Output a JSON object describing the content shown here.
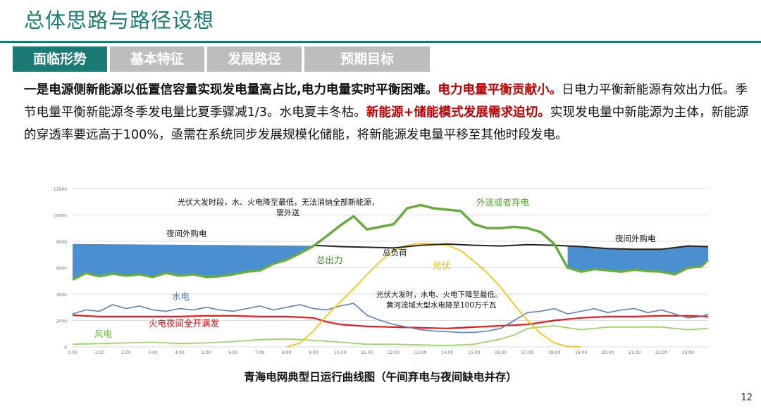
{
  "slide": {
    "title": "总体思路与路径设想",
    "tabs": [
      "面临形势",
      "基本特征",
      "发展路径",
      "预期目标"
    ],
    "active_tab": 0,
    "page_number": "12",
    "caption": "青海电网典型日运行曲线图（午间弃电与夜间缺电并存）",
    "paragraph": [
      {
        "text": "一是电源侧新能源以低置信容量实现发电量高占比,电力电量实时平衡困难。",
        "style": "bold"
      },
      {
        "text": "电力电量平衡贡献小。",
        "style": "red"
      },
      {
        "text": "日电力平衡新能源有效出力低。季节电量平衡新能源冬季发电量比夏季骤减1/3。水电夏丰冬枯。",
        "style": "normal"
      },
      {
        "text": "新能源+储能模式发展需求迫切。",
        "style": "red"
      },
      {
        "text": "实现发电量中新能源为主体，新能源的穿透率要远高于100%，亟需在系统同步发展规模化储能，将新能源发电量平移至其他时段发电。",
        "style": "normal"
      }
    ]
  },
  "chart_data": {
    "type": "line",
    "x_labels": [
      "0:00",
      "1:00",
      "2:00",
      "3:00",
      "4:00",
      "5:00",
      "6:00",
      "7:00",
      "8:00",
      "9:00",
      "10:00",
      "11:00",
      "12:00",
      "13:00",
      "14:00",
      "15:00",
      "16:00",
      "17:00",
      "18:00",
      "19:00",
      "20:00",
      "21:00",
      "22:00",
      "23:00"
    ],
    "y_ticks": [
      0,
      2000,
      4000,
      6000,
      8000,
      10000,
      12000
    ],
    "ylim": [
      0,
      12000
    ],
    "x_range": [
      0,
      23.75
    ],
    "series": [
      {
        "name": "总出力",
        "color": "#6aab3f",
        "x": [
          0,
          0.5,
          1,
          1.5,
          2,
          2.5,
          3,
          3.5,
          4,
          4.5,
          5,
          5.5,
          6,
          6.5,
          7,
          7.5,
          8,
          8.5,
          9,
          9.5,
          10,
          10.5,
          11,
          11.5,
          12,
          12.5,
          13,
          13.5,
          14,
          14.5,
          15,
          15.5,
          16,
          16.5,
          17,
          17.5,
          18,
          18.5,
          19,
          19.5,
          20,
          20.5,
          21,
          21.5,
          22,
          22.5,
          23,
          23.5,
          23.75
        ],
        "y": [
          5100,
          5600,
          5350,
          5550,
          5400,
          5500,
          5300,
          5600,
          5400,
          5500,
          5300,
          5350,
          5500,
          5700,
          5800,
          6300,
          6600,
          7100,
          7650,
          8400,
          9200,
          9900,
          8900,
          9100,
          9300,
          10500,
          10750,
          10500,
          10400,
          10300,
          9300,
          9000,
          9000,
          9100,
          9000,
          8700,
          7800,
          6000,
          5700,
          5900,
          5800,
          5700,
          5850,
          5750,
          5700,
          5500,
          6000,
          6100,
          6600
        ]
      },
      {
        "name": "总负荷",
        "color": "#222222",
        "x": [
          9,
          10,
          11,
          12,
          13,
          14,
          15,
          16,
          17,
          18,
          19,
          20,
          21,
          22,
          23,
          23.75
        ],
        "y": [
          7700,
          7600,
          7550,
          7500,
          7700,
          7800,
          7700,
          7650,
          7750,
          7700,
          7600,
          7450,
          7400,
          7400,
          7650,
          7600
        ]
      },
      {
        "name": "光伏",
        "color": "#f5c518",
        "x": [
          8,
          8.5,
          9,
          9.5,
          10,
          10.5,
          11,
          11.5,
          12,
          12.5,
          13,
          13.5,
          14,
          14.5,
          15,
          15.5,
          16,
          16.5,
          17,
          17.5,
          18,
          18.5,
          19
        ],
        "y": [
          0,
          300,
          1200,
          2400,
          3400,
          4400,
          5500,
          6500,
          7300,
          7700,
          7850,
          7800,
          7700,
          7300,
          6500,
          5600,
          4500,
          3200,
          2000,
          1000,
          300,
          50,
          0
        ]
      },
      {
        "name": "水电",
        "color": "#5b7fb8",
        "x": [
          0,
          0.5,
          1,
          1.5,
          2,
          2.5,
          3,
          3.5,
          4,
          4.5,
          5,
          5.5,
          6,
          6.5,
          7,
          7.5,
          8,
          8.5,
          9,
          9.5,
          10,
          10.5,
          11,
          11.5,
          12,
          12.5,
          13,
          13.5,
          14,
          14.5,
          15,
          15.5,
          16,
          16.5,
          17,
          17.5,
          18,
          18.5,
          19,
          19.5,
          20,
          20.5,
          21,
          21.5,
          22,
          22.5,
          23,
          23.5,
          23.75
        ],
        "y": [
          2500,
          2800,
          2700,
          3200,
          2900,
          3100,
          2800,
          2700,
          2900,
          2800,
          3000,
          2800,
          2700,
          2900,
          3100,
          2800,
          3000,
          3200,
          2900,
          2800,
          3100,
          3300,
          2400,
          2000,
          1700,
          1500,
          1300,
          1200,
          1150,
          1100,
          1100,
          1200,
          1400,
          2000,
          2600,
          2700,
          2900,
          2500,
          2700,
          2900,
          2600,
          2800,
          2900,
          2600,
          2800,
          2500,
          2200,
          2300,
          2500
        ]
      },
      {
        "name": "火电夜间全开满发",
        "color": "#e02020",
        "x": [
          0,
          1,
          2,
          3,
          4,
          5,
          6,
          7,
          8,
          9,
          9.5,
          10,
          11,
          12,
          13,
          14,
          15,
          16,
          17,
          18,
          19,
          20,
          21,
          22,
          23,
          23.75
        ],
        "y": [
          2400,
          2300,
          2300,
          2300,
          2300,
          2350,
          2350,
          2300,
          2300,
          2200,
          1900,
          1700,
          1550,
          1500,
          1450,
          1400,
          1500,
          1600,
          1700,
          2000,
          2200,
          2300,
          2300,
          2350,
          2350,
          2300
        ]
      },
      {
        "name": "风电",
        "color": "#9ed36a",
        "x": [
          0,
          1,
          2,
          3,
          4,
          5,
          6,
          7,
          8,
          9,
          10,
          11,
          12,
          13,
          14,
          15,
          15.5,
          16,
          16.5,
          17,
          18,
          19,
          20,
          21,
          22,
          23,
          23.75
        ],
        "y": [
          200,
          250,
          300,
          350,
          250,
          300,
          400,
          550,
          600,
          500,
          350,
          200,
          200,
          150,
          100,
          200,
          400,
          600,
          900,
          1400,
          1600,
          1300,
          1500,
          1500,
          1500,
          1300,
          1400
        ]
      }
    ],
    "annotations": {
      "night_purchase_left": "夜间外购电",
      "night_purchase_right": "夜间外购电",
      "pv_peak_top_line1": "光伏大发时段，水、火电降至最低，无法消纳全部新能源，",
      "pv_peak_top_line2": "需外送",
      "export_or_curtail": "外送或者弃电",
      "total_load": "总负荷",
      "total_output": "总出力",
      "pv": "光伏",
      "hydro": "水电",
      "thermal": "火电夜间全开满发",
      "wind": "风电",
      "pv_peak_mid_line1": "光伏大发时，水电、火电下降至最低。",
      "pv_peak_mid_line2": "黄河流域大型水电降至100万千瓦"
    }
  }
}
